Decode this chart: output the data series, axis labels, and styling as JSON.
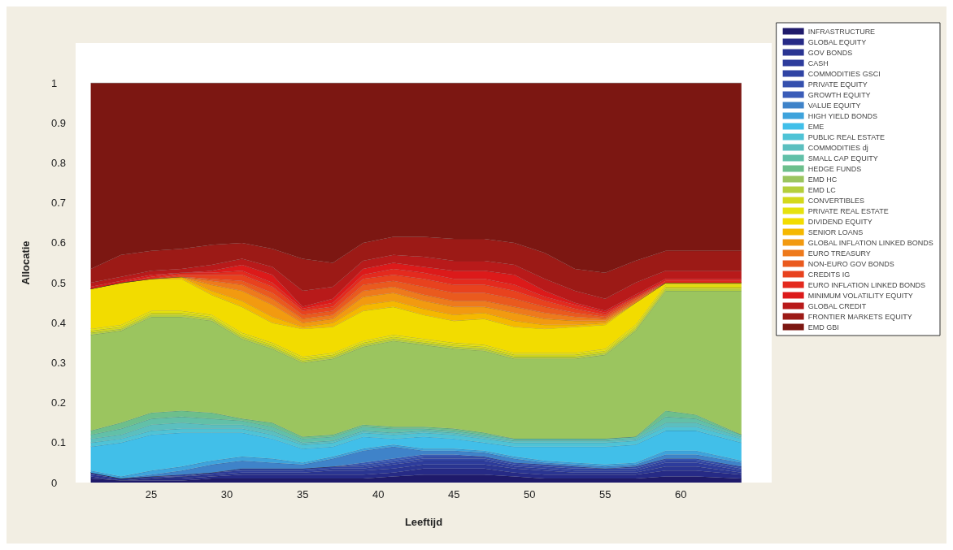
{
  "chart_data": {
    "type": "area",
    "stacked": true,
    "xlabel": "Leeftijd",
    "ylabel": "Allocatie",
    "legend": "top right",
    "xlim": [
      20,
      66
    ],
    "xticks": [
      25,
      30,
      35,
      40,
      45,
      50,
      55,
      60
    ],
    "ylim": [
      0,
      1.1
    ],
    "yticks": [
      0,
      0.1,
      0.2,
      0.3,
      0.4,
      0.5,
      0.6,
      0.7,
      0.8,
      0.9,
      1
    ],
    "x": [
      21,
      23,
      25,
      27,
      29,
      31,
      33,
      35,
      37,
      39,
      41,
      43,
      45,
      47,
      49,
      51,
      53,
      55,
      57,
      59,
      61,
      64
    ],
    "series": [
      {
        "name": "INFRASTRUCTURE",
        "color": "#1f1a6b",
        "values": [
          0.01,
          0.005,
          0.005,
          0.005,
          0.01,
          0.01,
          0.01,
          0.01,
          0.01,
          0.01,
          0.015,
          0.02,
          0.02,
          0.02,
          0.015,
          0.01,
          0.01,
          0.01,
          0.01,
          0.015,
          0.015,
          0.01
        ]
      },
      {
        "name": "GLOBAL EQUITY",
        "color": "#262a86",
        "values": [
          0.005,
          0,
          0.005,
          0.005,
          0.005,
          0.01,
          0.01,
          0.01,
          0.01,
          0.01,
          0.01,
          0.015,
          0.015,
          0.015,
          0.01,
          0.01,
          0.01,
          0.01,
          0.01,
          0.015,
          0.015,
          0.01
        ]
      },
      {
        "name": "GOV BONDS",
        "color": "#2a3592",
        "values": [
          0.005,
          0.005,
          0,
          0.005,
          0.005,
          0.005,
          0.005,
          0.005,
          0.01,
          0.01,
          0.01,
          0.01,
          0.01,
          0.01,
          0.01,
          0.01,
          0.005,
          0.005,
          0.005,
          0.01,
          0.01,
          0.005
        ]
      },
      {
        "name": "CASH",
        "color": "#2d3c9c",
        "values": [
          0.005,
          0,
          0.005,
          0,
          0.005,
          0.005,
          0.005,
          0.005,
          0.005,
          0.005,
          0.01,
          0.01,
          0.01,
          0.01,
          0.005,
          0.005,
          0.005,
          0.005,
          0.005,
          0.01,
          0.01,
          0.005
        ]
      },
      {
        "name": "COMMODITIES GSCI",
        "color": "#3044a4",
        "values": [
          0,
          0,
          0,
          0.005,
          0,
          0.005,
          0.005,
          0.005,
          0.005,
          0.005,
          0.005,
          0.005,
          0.005,
          0.005,
          0.005,
          0.005,
          0.005,
          0.005,
          0.005,
          0.005,
          0.005,
          0.005
        ]
      },
      {
        "name": "PRIVATE EQUITY",
        "color": "#3550ae",
        "values": [
          0,
          0,
          0,
          0,
          0,
          0,
          0,
          0,
          0,
          0.005,
          0.005,
          0.005,
          0.005,
          0.005,
          0.005,
          0.005,
          0.005,
          0,
          0.005,
          0.005,
          0.005,
          0.005
        ]
      },
      {
        "name": "GROWTH EQUITY",
        "color": "#3a5cb8",
        "values": [
          0,
          0,
          0,
          0,
          0,
          0,
          0,
          0,
          0,
          0.005,
          0.005,
          0.005,
          0.005,
          0,
          0,
          0,
          0,
          0,
          0,
          0,
          0,
          0
        ]
      },
      {
        "name": "VALUE EQUITY",
        "color": "#3f83c9",
        "values": [
          0,
          0,
          0.005,
          0.01,
          0.02,
          0.02,
          0.015,
          0.01,
          0.02,
          0.03,
          0.03,
          0.01,
          0.01,
          0.01,
          0.01,
          0.005,
          0.005,
          0.005,
          0.005,
          0.01,
          0.01,
          0.01
        ]
      },
      {
        "name": "HIGH YIELD BONDS",
        "color": "#3ea3dc",
        "values": [
          0.005,
          0.005,
          0.01,
          0.01,
          0.01,
          0.01,
          0.01,
          0.005,
          0.005,
          0.005,
          0.005,
          0.005,
          0.005,
          0.005,
          0.005,
          0.005,
          0.005,
          0.005,
          0.005,
          0.01,
          0.01,
          0.005
        ]
      },
      {
        "name": "EME",
        "color": "#41bfe9",
        "values": [
          0.06,
          0.085,
          0.09,
          0.085,
          0.07,
          0.06,
          0.05,
          0.035,
          0.025,
          0.03,
          0.015,
          0.03,
          0.025,
          0.02,
          0.025,
          0.035,
          0.04,
          0.045,
          0.045,
          0.05,
          0.05,
          0.045
        ]
      },
      {
        "name": "PUBLIC REAL ESTATE",
        "color": "#4fc3d6",
        "values": [
          0.01,
          0.01,
          0.01,
          0.01,
          0.01,
          0.01,
          0.01,
          0.01,
          0.01,
          0.01,
          0.01,
          0.01,
          0.01,
          0.01,
          0.01,
          0.01,
          0.01,
          0.01,
          0.01,
          0.01,
          0.01,
          0.01
        ]
      },
      {
        "name": "COMMODITIES dj",
        "color": "#5bbfbf",
        "values": [
          0.01,
          0.01,
          0.015,
          0.015,
          0.01,
          0.01,
          0.01,
          0.005,
          0.005,
          0.005,
          0.005,
          0.005,
          0.005,
          0.005,
          0.005,
          0.005,
          0.005,
          0.005,
          0.005,
          0.01,
          0.01,
          0.005
        ]
      },
      {
        "name": "SMALL CAP EQUITY",
        "color": "#62c0a8",
        "values": [
          0.01,
          0.015,
          0.015,
          0.015,
          0.015,
          0.01,
          0.01,
          0.01,
          0.01,
          0.01,
          0.01,
          0.005,
          0.005,
          0.005,
          0.005,
          0.005,
          0.005,
          0.005,
          0.005,
          0.015,
          0.01,
          0.005
        ]
      },
      {
        "name": "HEDGE FUNDS",
        "color": "#6dbf8c",
        "values": [
          0.01,
          0.015,
          0.015,
          0.015,
          0.015,
          0.005,
          0.01,
          0.005,
          0.005,
          0.005,
          0.005,
          0.005,
          0.005,
          0.005,
          0,
          0,
          0,
          0,
          0,
          0.015,
          0.01,
          0
        ]
      },
      {
        "name": "EMD HC",
        "color": "#9bc55f",
        "values": [
          0.24,
          0.23,
          0.24,
          0.235,
          0.23,
          0.2,
          0.185,
          0.185,
          0.19,
          0.195,
          0.215,
          0.205,
          0.2,
          0.205,
          0.2,
          0.2,
          0.2,
          0.21,
          0.265,
          0.3,
          0.31,
          0.36
        ]
      },
      {
        "name": "EMD LC",
        "color": "#b5cf3c",
        "values": [
          0.005,
          0.005,
          0.005,
          0.005,
          0.005,
          0.005,
          0.005,
          0.005,
          0.005,
          0.005,
          0.005,
          0.005,
          0.005,
          0.005,
          0.005,
          0.005,
          0.005,
          0.005,
          0.005,
          0.005,
          0.005,
          0.005
        ]
      },
      {
        "name": "CONVERTIBLES",
        "color": "#d4d91c",
        "values": [
          0.005,
          0.005,
          0.005,
          0.005,
          0.005,
          0.005,
          0.005,
          0.005,
          0.005,
          0.005,
          0.005,
          0.005,
          0.005,
          0.005,
          0.005,
          0.005,
          0.005,
          0.005,
          0.005,
          0.005,
          0.005,
          0.005
        ]
      },
      {
        "name": "PRIVATE REAL ESTATE",
        "color": "#e6e20e",
        "values": [
          0.005,
          0.005,
          0.005,
          0.005,
          0.005,
          0.005,
          0.005,
          0.005,
          0.005,
          0.005,
          0.005,
          0.005,
          0.005,
          0.005,
          0.005,
          0.005,
          0.005,
          0.005,
          0.005,
          0.005,
          0.005,
          0.005
        ]
      },
      {
        "name": "DIVIDEND EQUITY",
        "color": "#f2dc00",
        "values": [
          0.1,
          0.105,
          0.08,
          0.08,
          0.05,
          0.065,
          0.05,
          0.07,
          0.065,
          0.075,
          0.07,
          0.06,
          0.055,
          0.065,
          0.065,
          0.06,
          0.065,
          0.06,
          0.055,
          0.005,
          0.005,
          0.005
        ]
      },
      {
        "name": "SENIOR LOANS",
        "color": "#f5b800",
        "values": [
          0,
          0,
          0,
          0.005,
          0.01,
          0.015,
          0.015,
          0.005,
          0.01,
          0.015,
          0.015,
          0.015,
          0.015,
          0.015,
          0.015,
          0.01,
          0.005,
          0.005,
          0,
          0,
          0,
          0
        ]
      },
      {
        "name": "GLOBAL INFLATION LINKED BONDS",
        "color": "#f29a10",
        "values": [
          0,
          0,
          0,
          0,
          0.015,
          0.025,
          0.03,
          0.01,
          0.01,
          0.02,
          0.02,
          0.02,
          0.02,
          0.015,
          0.02,
          0.015,
          0.01,
          0.005,
          0,
          0,
          0,
          0
        ]
      },
      {
        "name": "EURO TREASURY",
        "color": "#ee7a1c",
        "values": [
          0,
          0,
          0,
          0,
          0.01,
          0.015,
          0.015,
          0.01,
          0.01,
          0.015,
          0.015,
          0.015,
          0.015,
          0.015,
          0.015,
          0.015,
          0.01,
          0.005,
          0.005,
          0,
          0,
          0
        ]
      },
      {
        "name": "NON-EURO GOV BONDS",
        "color": "#ea5a1e",
        "values": [
          0,
          0,
          0,
          0,
          0.005,
          0.01,
          0.015,
          0.01,
          0.01,
          0.015,
          0.015,
          0.02,
          0.02,
          0.02,
          0.02,
          0.015,
          0.01,
          0.005,
          0.005,
          0,
          0,
          0
        ]
      },
      {
        "name": "CREDITS IG",
        "color": "#e8421e",
        "values": [
          0,
          0,
          0,
          0.005,
          0.01,
          0.015,
          0.015,
          0.01,
          0.01,
          0.015,
          0.015,
          0.02,
          0.02,
          0.02,
          0.02,
          0.015,
          0.01,
          0.005,
          0.005,
          0,
          0,
          0
        ]
      },
      {
        "name": "EURO INFLATION LINKED BONDS",
        "color": "#e42a1e",
        "values": [
          0,
          0,
          0.005,
          0.005,
          0.005,
          0.01,
          0.01,
          0.005,
          0.01,
          0.01,
          0.015,
          0.015,
          0.015,
          0.015,
          0.015,
          0.01,
          0.01,
          0.005,
          0,
          0.005,
          0.005,
          0.005
        ]
      },
      {
        "name": "MINIMUM VOLATILITY EQUITY",
        "color": "#dc1a1a",
        "values": [
          0.005,
          0.005,
          0.005,
          0,
          0.005,
          0.015,
          0.02,
          0.005,
          0.01,
          0.015,
          0.015,
          0.015,
          0.02,
          0.02,
          0.025,
          0.015,
          0.005,
          0.005,
          0.005,
          0.005,
          0.005,
          0.005
        ]
      },
      {
        "name": "GLOBAL CREDIT",
        "color": "#b81a1a",
        "values": [
          0.01,
          0.01,
          0.01,
          0.01,
          0.015,
          0.015,
          0.02,
          0.04,
          0.03,
          0.02,
          0.02,
          0.025,
          0.025,
          0.025,
          0.025,
          0.03,
          0.03,
          0.03,
          0.03,
          0.02,
          0.02,
          0.02
        ]
      },
      {
        "name": "FRONTIER MARKETS EQUITY",
        "color": "#9c1a16",
        "values": [
          0.035,
          0.055,
          0.05,
          0.05,
          0.05,
          0.04,
          0.045,
          0.08,
          0.06,
          0.045,
          0.045,
          0.05,
          0.055,
          0.055,
          0.055,
          0.065,
          0.055,
          0.065,
          0.055,
          0.05,
          0.05,
          0.05
        ]
      },
      {
        "name": "EMD GBI",
        "color": "#7c1712",
        "values": [
          0.465,
          0.43,
          0.42,
          0.415,
          0.405,
          0.4,
          0.415,
          0.44,
          0.45,
          0.4,
          0.385,
          0.385,
          0.39,
          0.39,
          0.4,
          0.425,
          0.465,
          0.475,
          0.445,
          0.42,
          0.42,
          0.42
        ]
      }
    ]
  }
}
